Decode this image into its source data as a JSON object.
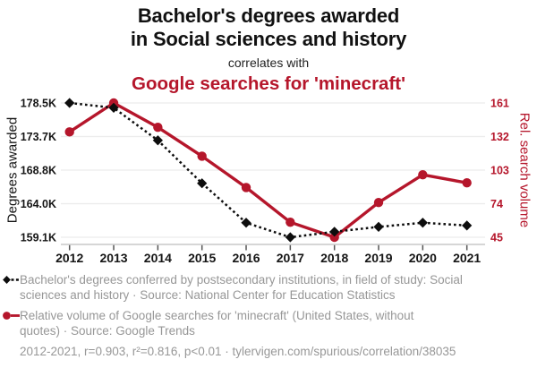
{
  "header": {
    "title_line1": "Bachelor's degrees awarded",
    "title_line2": "in Social sciences and history",
    "connector": "correlates with",
    "subtitle": "Google searches for 'minecraft'"
  },
  "colors": {
    "accent_red": "#b5162b",
    "series_black": "#0d0d0d",
    "legend_gray": "#979797",
    "gridline": "#ececec",
    "axis_line": "#c9c9c9",
    "tick_mark": "#555555"
  },
  "icons": {
    "black_series_marker": "black-diamond-with-dotted-line",
    "red_series_marker": "red-circle-with-solid-line"
  },
  "chart_data": {
    "type": "line",
    "x": [
      2012,
      2013,
      2014,
      2015,
      2016,
      2017,
      2018,
      2019,
      2020,
      2021
    ],
    "x_tick_labels": [
      "2012",
      "2013",
      "2014",
      "2015",
      "2016",
      "2017",
      "2018",
      "2019",
      "2020",
      "2021"
    ],
    "series": [
      {
        "name": "Bachelor's degrees conferred by postsecondary institutions, in field of study: Social sciences and history",
        "axis": "left",
        "unit": "thousand degrees",
        "color": "#0d0d0d",
        "line_style": "dotted",
        "marker": "diamond",
        "values": [
          178.5,
          177.8,
          173.1,
          166.9,
          161.2,
          159.1,
          159.9,
          160.6,
          161.2,
          160.8
        ]
      },
      {
        "name": "Relative volume of Google searches for 'minecraft' (United States, without quotes)",
        "axis": "right",
        "unit": "relative search volume",
        "color": "#b5162b",
        "line_style": "solid",
        "marker": "circle",
        "values": [
          136,
          161,
          140,
          115,
          88,
          58,
          45,
          75,
          99,
          92
        ]
      }
    ],
    "left_axis": {
      "label": "Degrees awarded",
      "tick_labels": [
        "178.5K",
        "173.7K",
        "168.8K",
        "164.0K",
        "159.1K"
      ],
      "tick_values": [
        178.5,
        173.7,
        168.8,
        164.0,
        159.1
      ],
      "range": [
        159.1,
        178.5
      ]
    },
    "right_axis": {
      "label": "Rel. search volume",
      "tick_labels": [
        "161",
        "132",
        "103",
        "74",
        "45"
      ],
      "tick_values": [
        161,
        132,
        103,
        74,
        45
      ],
      "range": [
        45,
        161
      ]
    },
    "grid": "horizontal-only",
    "legend_position": "bottom-left"
  },
  "legend": {
    "entries": [
      {
        "icon": "black-diamond-with-dotted-line",
        "text": "Bachelor's degrees conferred by postsecondary institutions, in field of study: Social sciences and history · Source: National Center for Education Statistics"
      },
      {
        "icon": "red-circle-with-solid-line",
        "text": "Relative volume of Google searches for 'minecraft' (United States, without quotes) · Source: Google Trends"
      }
    ]
  },
  "footer": {
    "stats": "2012-2021, r=0.903, r²=0.816, p<0.01 · tylervigen.com/spurious/correlation/38035"
  }
}
